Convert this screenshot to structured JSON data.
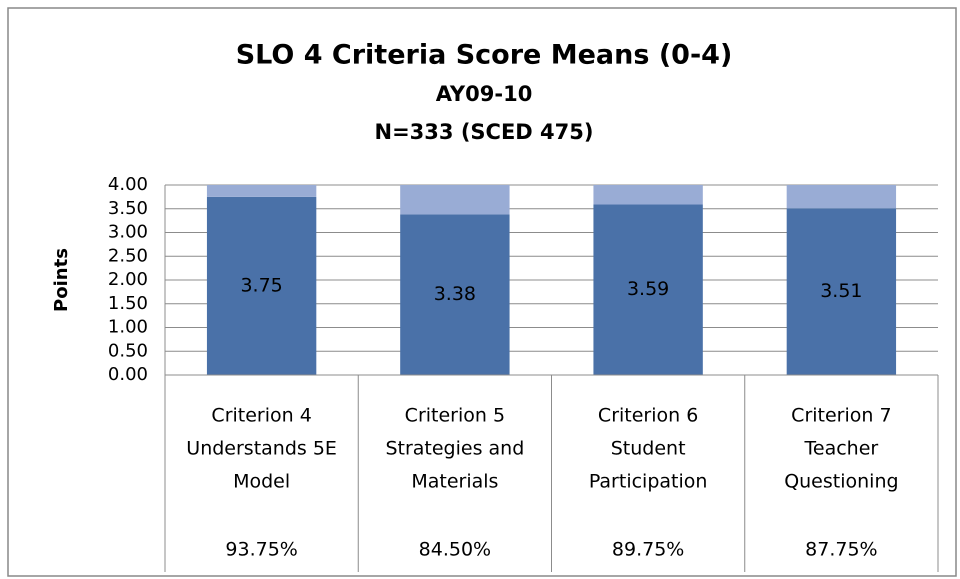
{
  "chart_data": {
    "type": "stacked_bar",
    "title": "SLO 4 Criteria Score Means (0-4)",
    "subtitle": [
      "AY09-10",
      "N=333 (SCED 475)"
    ],
    "y_label": "Points",
    "categories": [
      [
        "Criterion 4",
        "Understands 5E",
        "Model"
      ],
      [
        "Criterion 5",
        "Strategies and",
        "Materials"
      ],
      [
        "Criterion 6",
        "Student",
        "Participation"
      ],
      [
        "Criterion 7",
        "Teacher",
        "Questioning"
      ]
    ],
    "footer": [
      "93.75%",
      "84.50%",
      "89.75%",
      "87.75%"
    ],
    "series": [
      {
        "color": "#4a71a8",
        "values": [
          3.75,
          3.38,
          3.59,
          3.51
        ],
        "show_labels": true
      },
      {
        "color": "#99acd5",
        "values": [
          0.25,
          0.62,
          0.41,
          0.49
        ]
      }
    ],
    "ylim": [
      0,
      4
    ],
    "yticks": [
      {
        "value": 0,
        "label": "0.00"
      },
      {
        "value": 0.5,
        "label": "0.50"
      },
      {
        "value": 1,
        "label": "1.00"
      },
      {
        "value": 1.5,
        "label": "1.50"
      },
      {
        "value": 2,
        "label": "2.00"
      },
      {
        "value": 2.5,
        "label": "2.50"
      },
      {
        "value": 3,
        "label": "3.00"
      },
      {
        "value": 3.5,
        "label": "3.50"
      },
      {
        "value": 4,
        "label": "4.00"
      }
    ],
    "grid": true
  }
}
